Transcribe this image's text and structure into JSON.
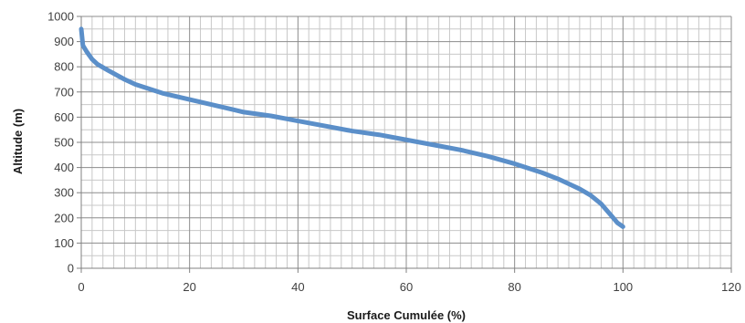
{
  "chart_data": {
    "type": "line",
    "title": "",
    "xlabel": "Surface Cumulée (%)",
    "ylabel": "Altitude (m)",
    "xlim": [
      0,
      120
    ],
    "ylim": [
      0,
      1000
    ],
    "x_major_step": 20,
    "y_major_step": 100,
    "x_minor_step": 2,
    "y_minor_step": 50,
    "grid": true,
    "legend": "none",
    "x_ticks": [
      "0",
      "20",
      "40",
      "60",
      "80",
      "100",
      "120"
    ],
    "y_ticks": [
      "0",
      "100",
      "200",
      "300",
      "400",
      "500",
      "600",
      "700",
      "800",
      "900",
      "1000"
    ],
    "colors": {
      "series": "#5b8fc9",
      "major_grid": "#8c8c8c",
      "minor_grid": "#c8c8c8"
    },
    "series": [
      {
        "x": [
          0,
          0.3,
          1,
          2,
          3,
          5,
          8,
          10,
          15,
          20,
          25,
          30,
          35,
          40,
          45,
          50,
          55,
          60,
          65,
          70,
          75,
          80,
          85,
          88,
          90,
          92,
          94,
          96,
          97,
          98,
          99,
          100
        ],
        "values": [
          950,
          885,
          860,
          830,
          810,
          785,
          750,
          730,
          695,
          670,
          645,
          620,
          605,
          585,
          565,
          545,
          530,
          510,
          490,
          470,
          445,
          415,
          380,
          355,
          335,
          315,
          290,
          255,
          230,
          205,
          180,
          165
        ]
      }
    ]
  }
}
